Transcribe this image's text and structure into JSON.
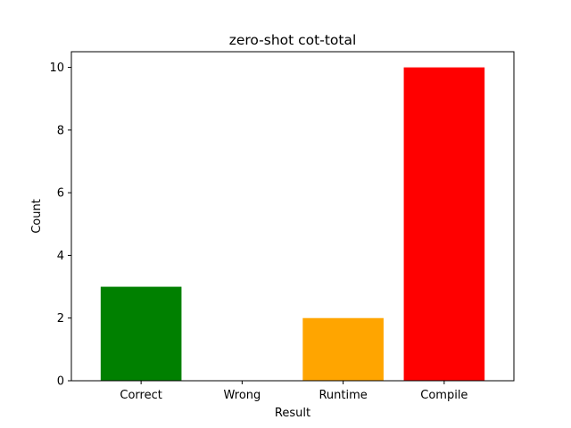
{
  "chart_data": {
    "type": "bar",
    "title": "zero-shot cot-total",
    "xlabel": "Result",
    "ylabel": "Count",
    "categories": [
      "Correct",
      "Wrong",
      "Runtime",
      "Compile"
    ],
    "values": [
      3,
      0,
      2,
      10
    ],
    "colors": [
      "#008000",
      "#0000ff",
      "#ffa500",
      "#ff0000"
    ],
    "ylim": [
      0,
      10.5
    ],
    "yticks": [
      0,
      2,
      4,
      6,
      8,
      10
    ],
    "grid": false,
    "legend": "none"
  }
}
